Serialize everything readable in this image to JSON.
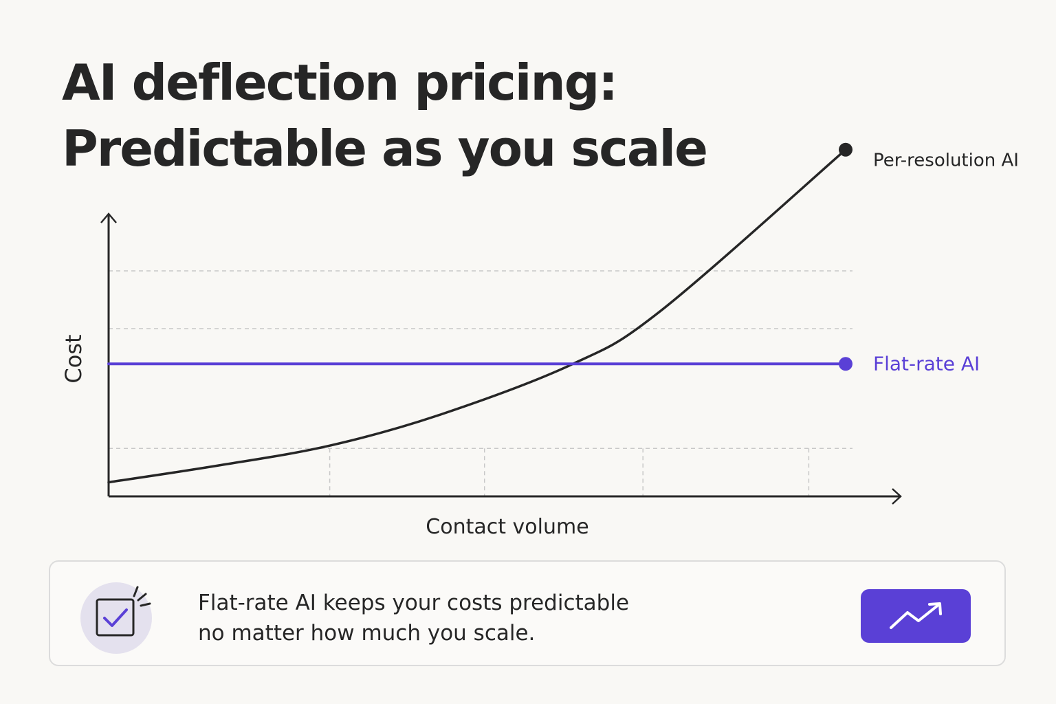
{
  "header": {
    "title_line1": "AI deflection pricing:",
    "title_line2": "Predictable as you scale"
  },
  "colors": {
    "flat_rate": "#5a40d6",
    "per_resolution": "#262626",
    "grid": "#c8c8c8",
    "badge_bg": "#e4e1ee"
  },
  "chart_data": {
    "type": "line",
    "xlabel": "Contact volume",
    "ylabel": "Cost",
    "xlim": [
      0,
      10
    ],
    "ylim": [
      0,
      10
    ],
    "grid": true,
    "legend": "direct labels at line ends, right",
    "series": [
      {
        "name": "Per-resolution AI",
        "x": [
          0,
          1.5,
          3,
          4.5,
          6.3,
          7.5,
          10
        ],
        "y": [
          0.5,
          1.1,
          1.8,
          2.9,
          4.7,
          6.6,
          12.3
        ]
      },
      {
        "name": "Flat-rate AI",
        "x": [
          0,
          10
        ],
        "y": [
          4.7,
          4.7
        ]
      }
    ]
  },
  "callout": {
    "line1": "Flat-rate AI keeps your costs predictable",
    "line2": "no matter how much you scale.",
    "check_icon": "checkbox-check-icon",
    "action_icon": "trend-up-icon"
  }
}
